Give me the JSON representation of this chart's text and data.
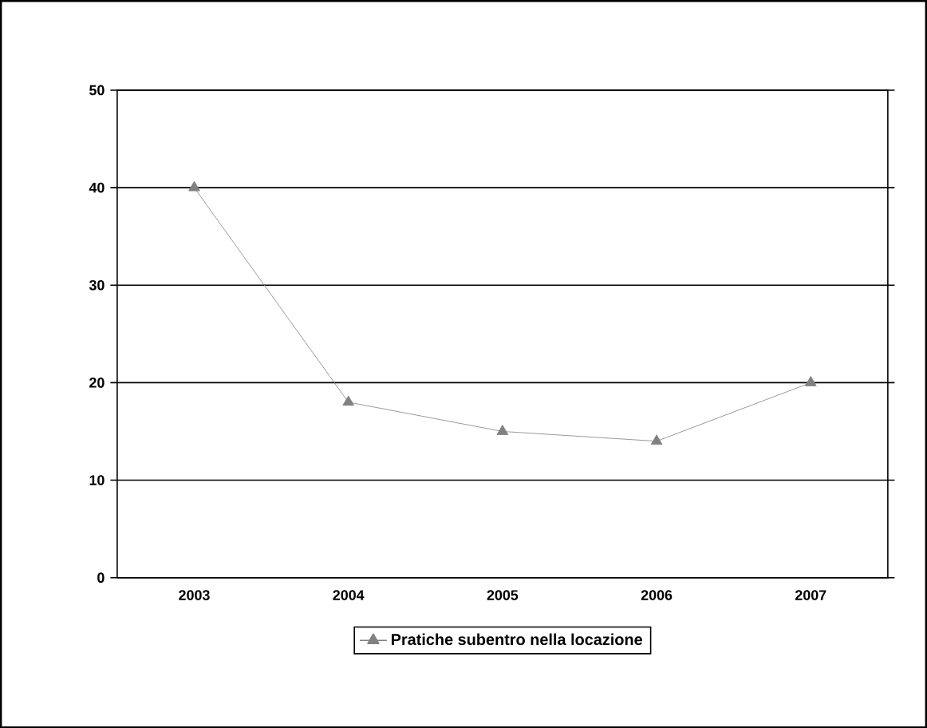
{
  "chart_data": {
    "type": "line",
    "categories": [
      "2003",
      "2004",
      "2005",
      "2006",
      "2007"
    ],
    "series": [
      {
        "name": "Pratiche subentro nella locazione",
        "color": "#808080",
        "values": [
          40,
          18,
          15,
          14,
          20
        ]
      }
    ],
    "ylim": [
      0,
      50
    ],
    "yticks": [
      0,
      10,
      20,
      30,
      40,
      50
    ],
    "grid": "y",
    "legend": "bottom",
    "marker": "triangle",
    "line_style": "solid"
  }
}
